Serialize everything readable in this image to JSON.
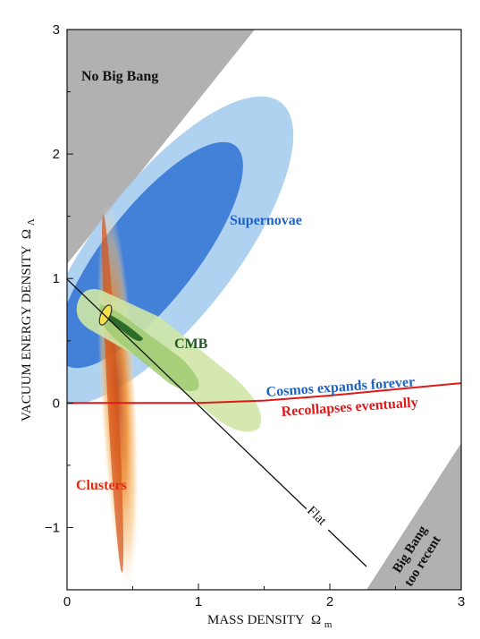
{
  "chart_data": {
    "type": "scatter",
    "xlabel": "MASS DENSITY",
    "xlabel_symbol": "Ω",
    "xlabel_sub": "m",
    "ylabel": "VACUUM ENERGY DENSITY",
    "ylabel_symbol": "Ω",
    "ylabel_sub": "Λ",
    "xlim": [
      0,
      3
    ],
    "ylim": [
      -1.5,
      3
    ],
    "xticks": [
      0,
      1,
      2,
      3
    ],
    "yticks": [
      -1,
      0,
      1,
      2,
      3
    ],
    "regions": [
      {
        "name": "No Big Bang",
        "color": "#a8a8a8"
      },
      {
        "name": "Big Bang too recent",
        "line1": "Big Bang",
        "line2": "too recent",
        "color": "#a8a8a8"
      }
    ],
    "constraints": [
      {
        "name": "Supernovae",
        "color": "#1e63c4",
        "center": [
          0.9,
          1.25
        ],
        "inner_color": "#3c7ad6",
        "outer_color": "#9cc8ee"
      },
      {
        "name": "CMB",
        "color": "#1e5a22",
        "center": [
          0.7,
          0.45
        ],
        "fill": "#cde6a6"
      },
      {
        "name": "Clusters",
        "color": "#e02a12",
        "center": [
          0.32,
          0.6
        ],
        "fill": "#f0a040"
      }
    ],
    "lines": [
      {
        "name": "Flat",
        "points": [
          [
            0,
            1
          ],
          [
            2.25,
            -1.25
          ]
        ],
        "color": "#111111"
      },
      {
        "name": "Cosmos expands forever",
        "color": "#1e63c4"
      },
      {
        "name": "Recollapses eventually",
        "color": "#dd1a1a",
        "points": [
          [
            0,
            0
          ],
          [
            1,
            0
          ],
          [
            1.5,
            0.02
          ],
          [
            2,
            0.06
          ],
          [
            2.5,
            0.11
          ],
          [
            3,
            0.16
          ]
        ]
      }
    ],
    "grid": false
  }
}
